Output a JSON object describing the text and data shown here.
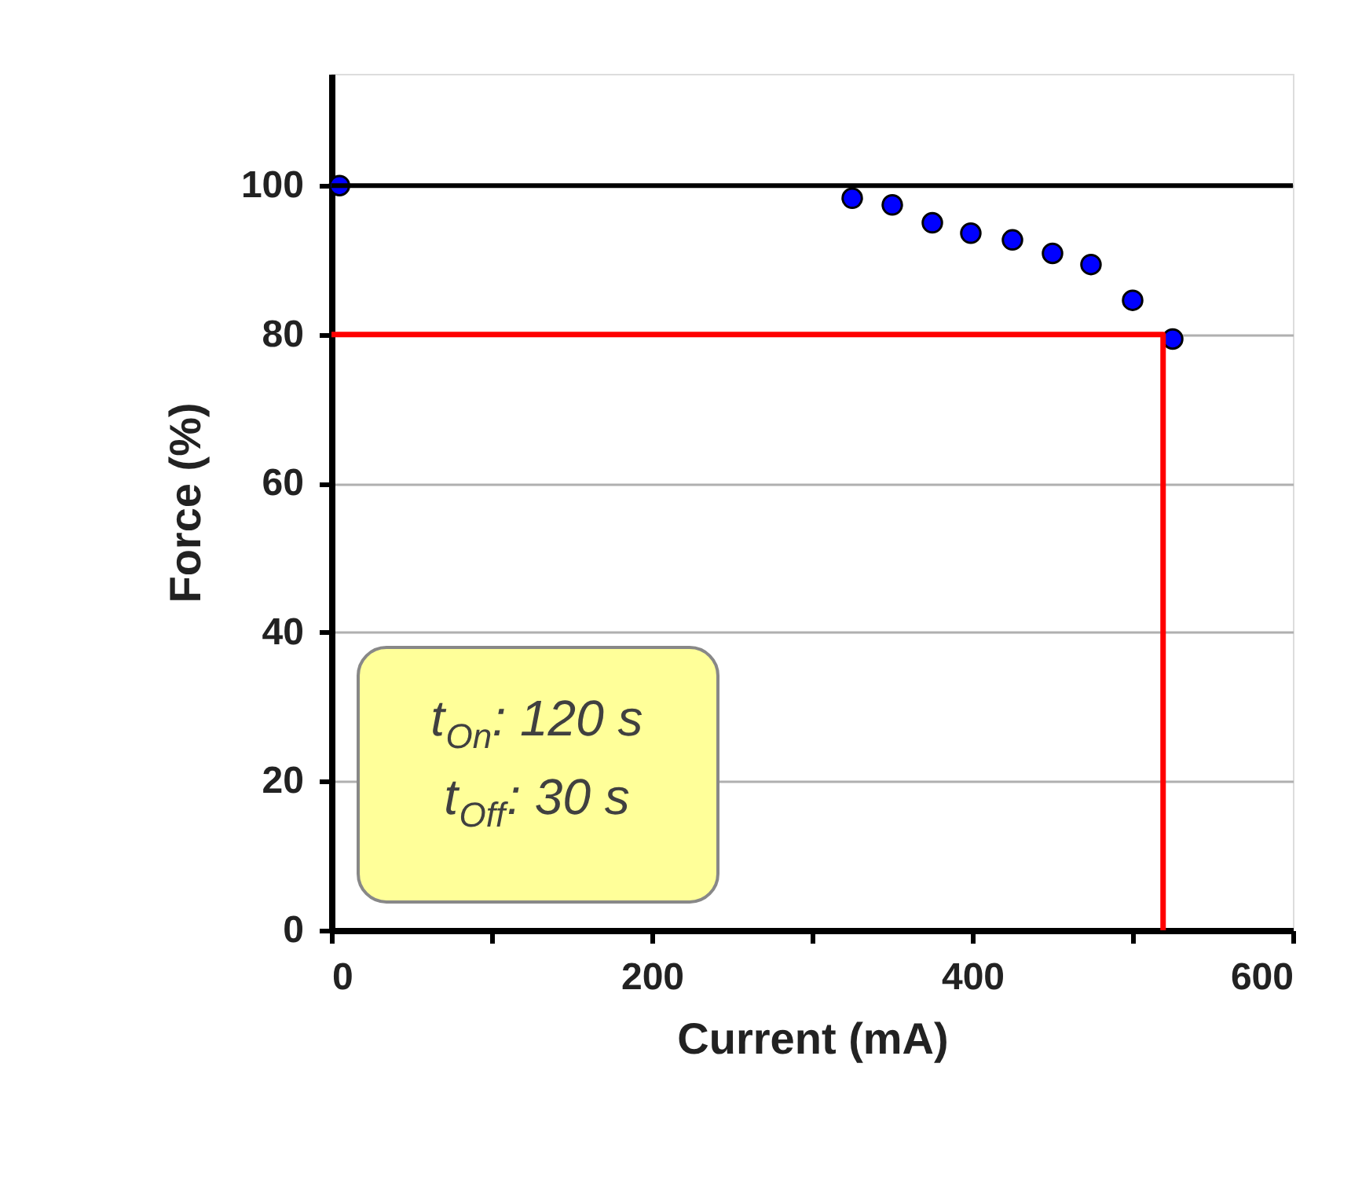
{
  "chart_data": {
    "type": "scatter",
    "xlabel": "Current (mA)",
    "ylabel": "Force (%)",
    "xlim": [
      0,
      600
    ],
    "xticks": [
      0,
      {
        "value": 100,
        "label": null
      },
      200,
      {
        "value": 300,
        "label": null
      },
      400,
      {
        "value": 500,
        "label": null
      },
      600
    ],
    "ylim": [
      0,
      115
    ],
    "yticks": [
      0,
      20,
      40,
      60,
      80,
      100
    ],
    "grid": "y",
    "marker": "circle",
    "series": [
      {
        "color": "#0000ff",
        "x": [
          5,
          325,
          350,
          375,
          399,
          425,
          450,
          474,
          500,
          525
        ],
        "values": [
          100,
          98.3,
          97.4,
          95.0,
          93.6,
          92.7,
          90.9,
          89.4,
          84.6,
          79.4
        ]
      },
      {
        "type": "line",
        "color": "#ff0000",
        "line_style": "solid",
        "marker": "none",
        "x": [
          0,
          519,
          519
        ],
        "values": [
          80,
          80,
          0
        ]
      }
    ],
    "ref_lines": [
      {
        "axis": "y",
        "value": 100,
        "color": "#000000"
      }
    ],
    "annotations": [
      "t$_{On}$: 120 s",
      "t$_{Off}$: 30 s"
    ]
  }
}
